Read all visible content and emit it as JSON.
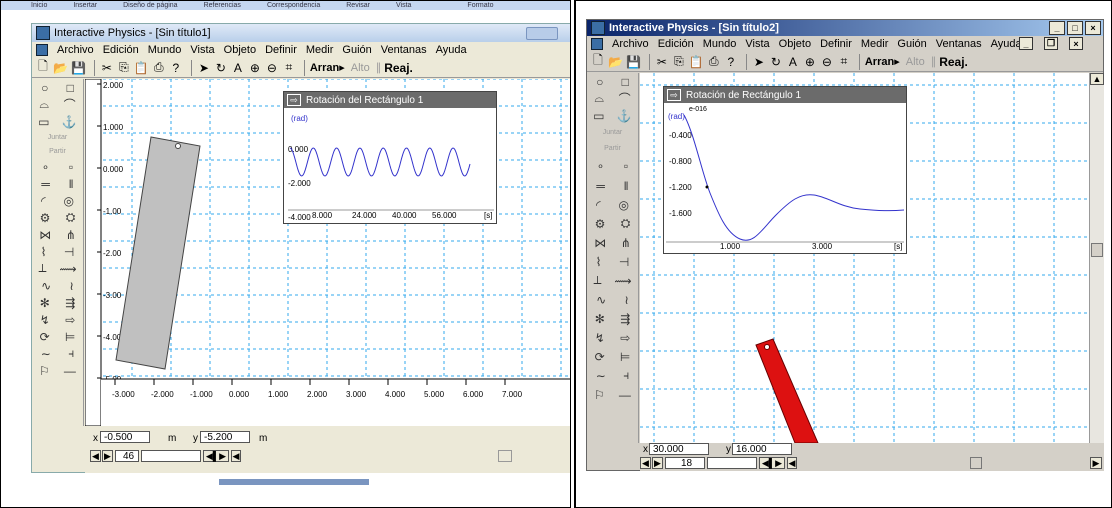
{
  "left": {
    "ribbon_tabs": [
      "Inicio",
      "Insertar",
      "Diseño de página",
      "Referencias",
      "Correspondencia",
      "Revisar",
      "Vista",
      "Formato"
    ],
    "window_title": "Interactive Physics - [Sin título1]",
    "menu": [
      "Archivo",
      "Edición",
      "Mundo",
      "Vista",
      "Objeto",
      "Definir",
      "Medir",
      "Guión",
      "Ventanas",
      "Ayuda"
    ],
    "toolbar": {
      "run": "Arran",
      "stop": "Alto",
      "reset": "Reaj."
    },
    "palette": {
      "join": "Juntar",
      "split": "Partir"
    },
    "y_ticks": [
      "2.000",
      "1.000",
      "0.000",
      "-1.00",
      "-2.00",
      "-3.00",
      "-4.00",
      "-5.00"
    ],
    "x_ticks": [
      "-3.000",
      "-2.000",
      "-1.000",
      "0.000",
      "1.000",
      "2.000",
      "3.000",
      "4.000",
      "5.000",
      "6.000",
      "7.000"
    ],
    "coords": {
      "x_label": "x",
      "x_value": "-0.500",
      "x_unit": "m",
      "y_label": "y",
      "y_value": "-5.200",
      "y_unit": "m"
    },
    "frame": "46",
    "meter": {
      "title": "Rotación del Rectángulo 1",
      "unit": "(rad)",
      "unit_s": "[s]",
      "y_labels": [
        "0.000",
        "-2.000",
        "-4.000"
      ],
      "x_labels": [
        "8.000",
        "24.000",
        "40.000",
        "56.000"
      ]
    }
  },
  "right": {
    "window_title": "Interactive Physics - [Sin título2]",
    "menu": [
      "Archivo",
      "Edición",
      "Mundo",
      "Vista",
      "Objeto",
      "Definir",
      "Medir",
      "Guión",
      "Ventanas",
      "Ayuda"
    ],
    "toolbar": {
      "run": "Arran",
      "stop": "Alto",
      "reset": "Reaj."
    },
    "palette": {
      "join": "Juntar",
      "split": "Partir"
    },
    "coords": {
      "x_label": "x",
      "x_value": "30.000",
      "y_label": "y",
      "y_value": "16.000"
    },
    "frame": "18",
    "meter": {
      "title": "Rotación de Rectángulo 1",
      "unit": "(rad)",
      "exp": "e-016",
      "unit_s": "[s]",
      "y_labels": [
        "-0.400",
        "-0.800",
        "-1.200",
        "-1.600"
      ],
      "x_labels": [
        "1.000",
        "3.000"
      ]
    }
  },
  "colors": {
    "rect_left": "#c0c0c0",
    "rect_right": "#dd1111",
    "grid": "#33aaee",
    "curve": "#3333cc"
  }
}
